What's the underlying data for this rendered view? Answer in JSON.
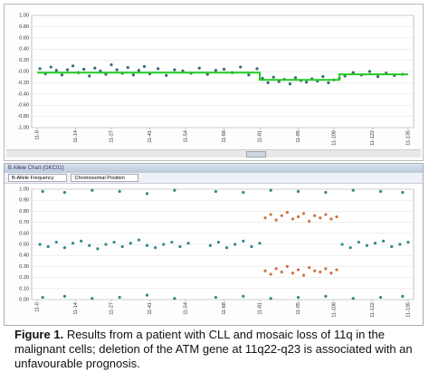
{
  "chart_data": [
    {
      "type": "scatter",
      "xlim": [
        -2,
        137
      ],
      "xticks": [
        {
          "value": 0,
          "label": "11-0"
        },
        {
          "value": 14,
          "label": "11-14"
        },
        {
          "value": 27,
          "label": "11-27"
        },
        {
          "value": 41,
          "label": "11-41"
        },
        {
          "value": 54,
          "label": "11-54"
        },
        {
          "value": 68,
          "label": "11-68"
        },
        {
          "value": 81,
          "label": "11-81"
        },
        {
          "value": 95,
          "label": "11-95"
        },
        {
          "value": 108,
          "label": "11-108"
        },
        {
          "value": 122,
          "label": "11-122"
        },
        {
          "value": 135,
          "label": "11-135"
        }
      ],
      "ylim": [
        -1,
        1
      ],
      "yticks": [
        {
          "value": 1,
          "label": "1.00"
        },
        {
          "value": 0.8,
          "label": "0.80"
        },
        {
          "value": 0.6,
          "label": "0.60"
        },
        {
          "value": 0.4,
          "label": "0.40"
        },
        {
          "value": 0.2,
          "label": "0.20"
        },
        {
          "value": 0,
          "label": "-0.00"
        },
        {
          "value": -0.2,
          "label": "-0.20"
        },
        {
          "value": -0.4,
          "label": "-0.40"
        },
        {
          "value": -0.6,
          "label": "-0.60"
        },
        {
          "value": -0.8,
          "label": "-0.80"
        },
        {
          "value": -1,
          "label": "-1.00"
        }
      ],
      "grid": true,
      "series": [
        {
          "color": "#1f5a6b",
          "mode": "points",
          "x": [
            1,
            3,
            5,
            7,
            9,
            11,
            13,
            15,
            17,
            19,
            21,
            23,
            25,
            27,
            29,
            31,
            33,
            35,
            37,
            39,
            41,
            44,
            47,
            50,
            53,
            56,
            59,
            62,
            65,
            68,
            71,
            74,
            77,
            80,
            82,
            84,
            86,
            88,
            90,
            92,
            94,
            96,
            98,
            100,
            102,
            104,
            106,
            108,
            110,
            112,
            115,
            118,
            121,
            124,
            127,
            130,
            133
          ],
          "values": [
            0.05,
            -0.04,
            0.08,
            0.02,
            -0.06,
            0.03,
            0.1,
            -0.02,
            0.04,
            -0.08,
            0.06,
            0.01,
            -0.05,
            0.12,
            0.03,
            -0.03,
            0.07,
            -0.06,
            0.02,
            0.09,
            -0.04,
            0.05,
            -0.07,
            0.03,
            0.01,
            -0.03,
            0.06,
            -0.05,
            0.02,
            0.04,
            -0.02,
            0.08,
            -0.06,
            0.05,
            -0.12,
            -0.2,
            -0.1,
            -0.18,
            -0.14,
            -0.22,
            -0.11,
            -0.16,
            -0.19,
            -0.13,
            -0.17,
            -0.09,
            -0.2,
            -0.15,
            -0.12,
            -0.08,
            -0.02,
            -0.06,
            0.0,
            -0.09,
            -0.03,
            -0.07,
            -0.05
          ]
        },
        {
          "color": "#22cc22",
          "mode": "line",
          "x": [
            0,
            81,
            81,
            110,
            110,
            135
          ],
          "values": [
            -0.02,
            -0.02,
            -0.15,
            -0.15,
            -0.05,
            -0.05
          ]
        }
      ]
    },
    {
      "type": "scatter",
      "xlim": [
        -2,
        137
      ],
      "xticks": [
        {
          "value": 0,
          "label": "11-0"
        },
        {
          "value": 14,
          "label": "11-14"
        },
        {
          "value": 27,
          "label": "11-27"
        },
        {
          "value": 41,
          "label": "11-41"
        },
        {
          "value": 54,
          "label": "11-54"
        },
        {
          "value": 68,
          "label": "11-68"
        },
        {
          "value": 81,
          "label": "11-81"
        },
        {
          "value": 95,
          "label": "11-95"
        },
        {
          "value": 108,
          "label": "11-108"
        },
        {
          "value": 122,
          "label": "11-122"
        },
        {
          "value": 135,
          "label": "11-135"
        }
      ],
      "ylim": [
        0,
        1
      ],
      "yticks": [
        {
          "value": 1,
          "label": "1.00"
        },
        {
          "value": 0.9,
          "label": "0.90"
        },
        {
          "value": 0.8,
          "label": "0.80"
        },
        {
          "value": 0.7,
          "label": "0.70"
        },
        {
          "value": 0.6,
          "label": "0.60"
        },
        {
          "value": 0.5,
          "label": "0.50"
        },
        {
          "value": 0.4,
          "label": "0.40"
        },
        {
          "value": 0.3,
          "label": "0.30"
        },
        {
          "value": 0.2,
          "label": "0.20"
        },
        {
          "value": 0.1,
          "label": "0.10"
        },
        {
          "value": 0,
          "label": "0.00"
        }
      ],
      "grid": true,
      "series": [
        {
          "color": "#1e7b7b",
          "mode": "points",
          "x": [
            2,
            10,
            20,
            30,
            40,
            50,
            65,
            75,
            85,
            95,
            105,
            115,
            125,
            133,
            2,
            10,
            20,
            30,
            40,
            50,
            65,
            75,
            85,
            95,
            105,
            115,
            125,
            133,
            1,
            4,
            7,
            10,
            13,
            16,
            19,
            22,
            25,
            28,
            31,
            34,
            37,
            40,
            43,
            46,
            49,
            52,
            55,
            63,
            66,
            69,
            72,
            75,
            78,
            81,
            111,
            114,
            117,
            120,
            123,
            126,
            129,
            132,
            135
          ],
          "values": [
            0.98,
            0.97,
            0.99,
            0.98,
            0.96,
            0.99,
            0.98,
            0.97,
            0.99,
            0.98,
            0.97,
            0.99,
            0.98,
            0.97,
            0.02,
            0.03,
            0.01,
            0.02,
            0.04,
            0.01,
            0.02,
            0.03,
            0.01,
            0.02,
            0.03,
            0.01,
            0.02,
            0.03,
            0.5,
            0.48,
            0.52,
            0.47,
            0.51,
            0.53,
            0.49,
            0.46,
            0.5,
            0.52,
            0.48,
            0.51,
            0.54,
            0.49,
            0.47,
            0.5,
            0.52,
            0.48,
            0.51,
            0.49,
            0.52,
            0.47,
            0.5,
            0.53,
            0.48,
            0.51,
            0.5,
            0.47,
            0.52,
            0.49,
            0.51,
            0.53,
            0.48,
            0.5,
            0.52
          ]
        },
        {
          "color": "#c8642a",
          "mode": "points",
          "x": [
            83,
            85,
            87,
            89,
            91,
            93,
            95,
            97,
            99,
            101,
            103,
            105,
            107,
            109,
            83,
            85,
            87,
            89,
            91,
            93,
            95,
            97,
            99,
            101,
            103,
            105,
            107,
            109
          ],
          "values": [
            0.74,
            0.77,
            0.72,
            0.76,
            0.79,
            0.73,
            0.75,
            0.78,
            0.71,
            0.76,
            0.74,
            0.77,
            0.73,
            0.75,
            0.26,
            0.23,
            0.28,
            0.25,
            0.3,
            0.24,
            0.27,
            0.22,
            0.29,
            0.26,
            0.25,
            0.28,
            0.24,
            0.27
          ]
        }
      ]
    }
  ],
  "panel": {
    "title": "B Allele Chart (GKC01)",
    "dropdowns": [
      "B-Allele Frequency",
      "Chromosomal Position"
    ]
  },
  "caption": {
    "label": "Figure 1.",
    "text": "Results from a patient with CLL and mosaic loss of 11q in the malignant cells; deletion of the ATM gene at 11q22-q23 is associated with an unfavourable prognosis."
  }
}
